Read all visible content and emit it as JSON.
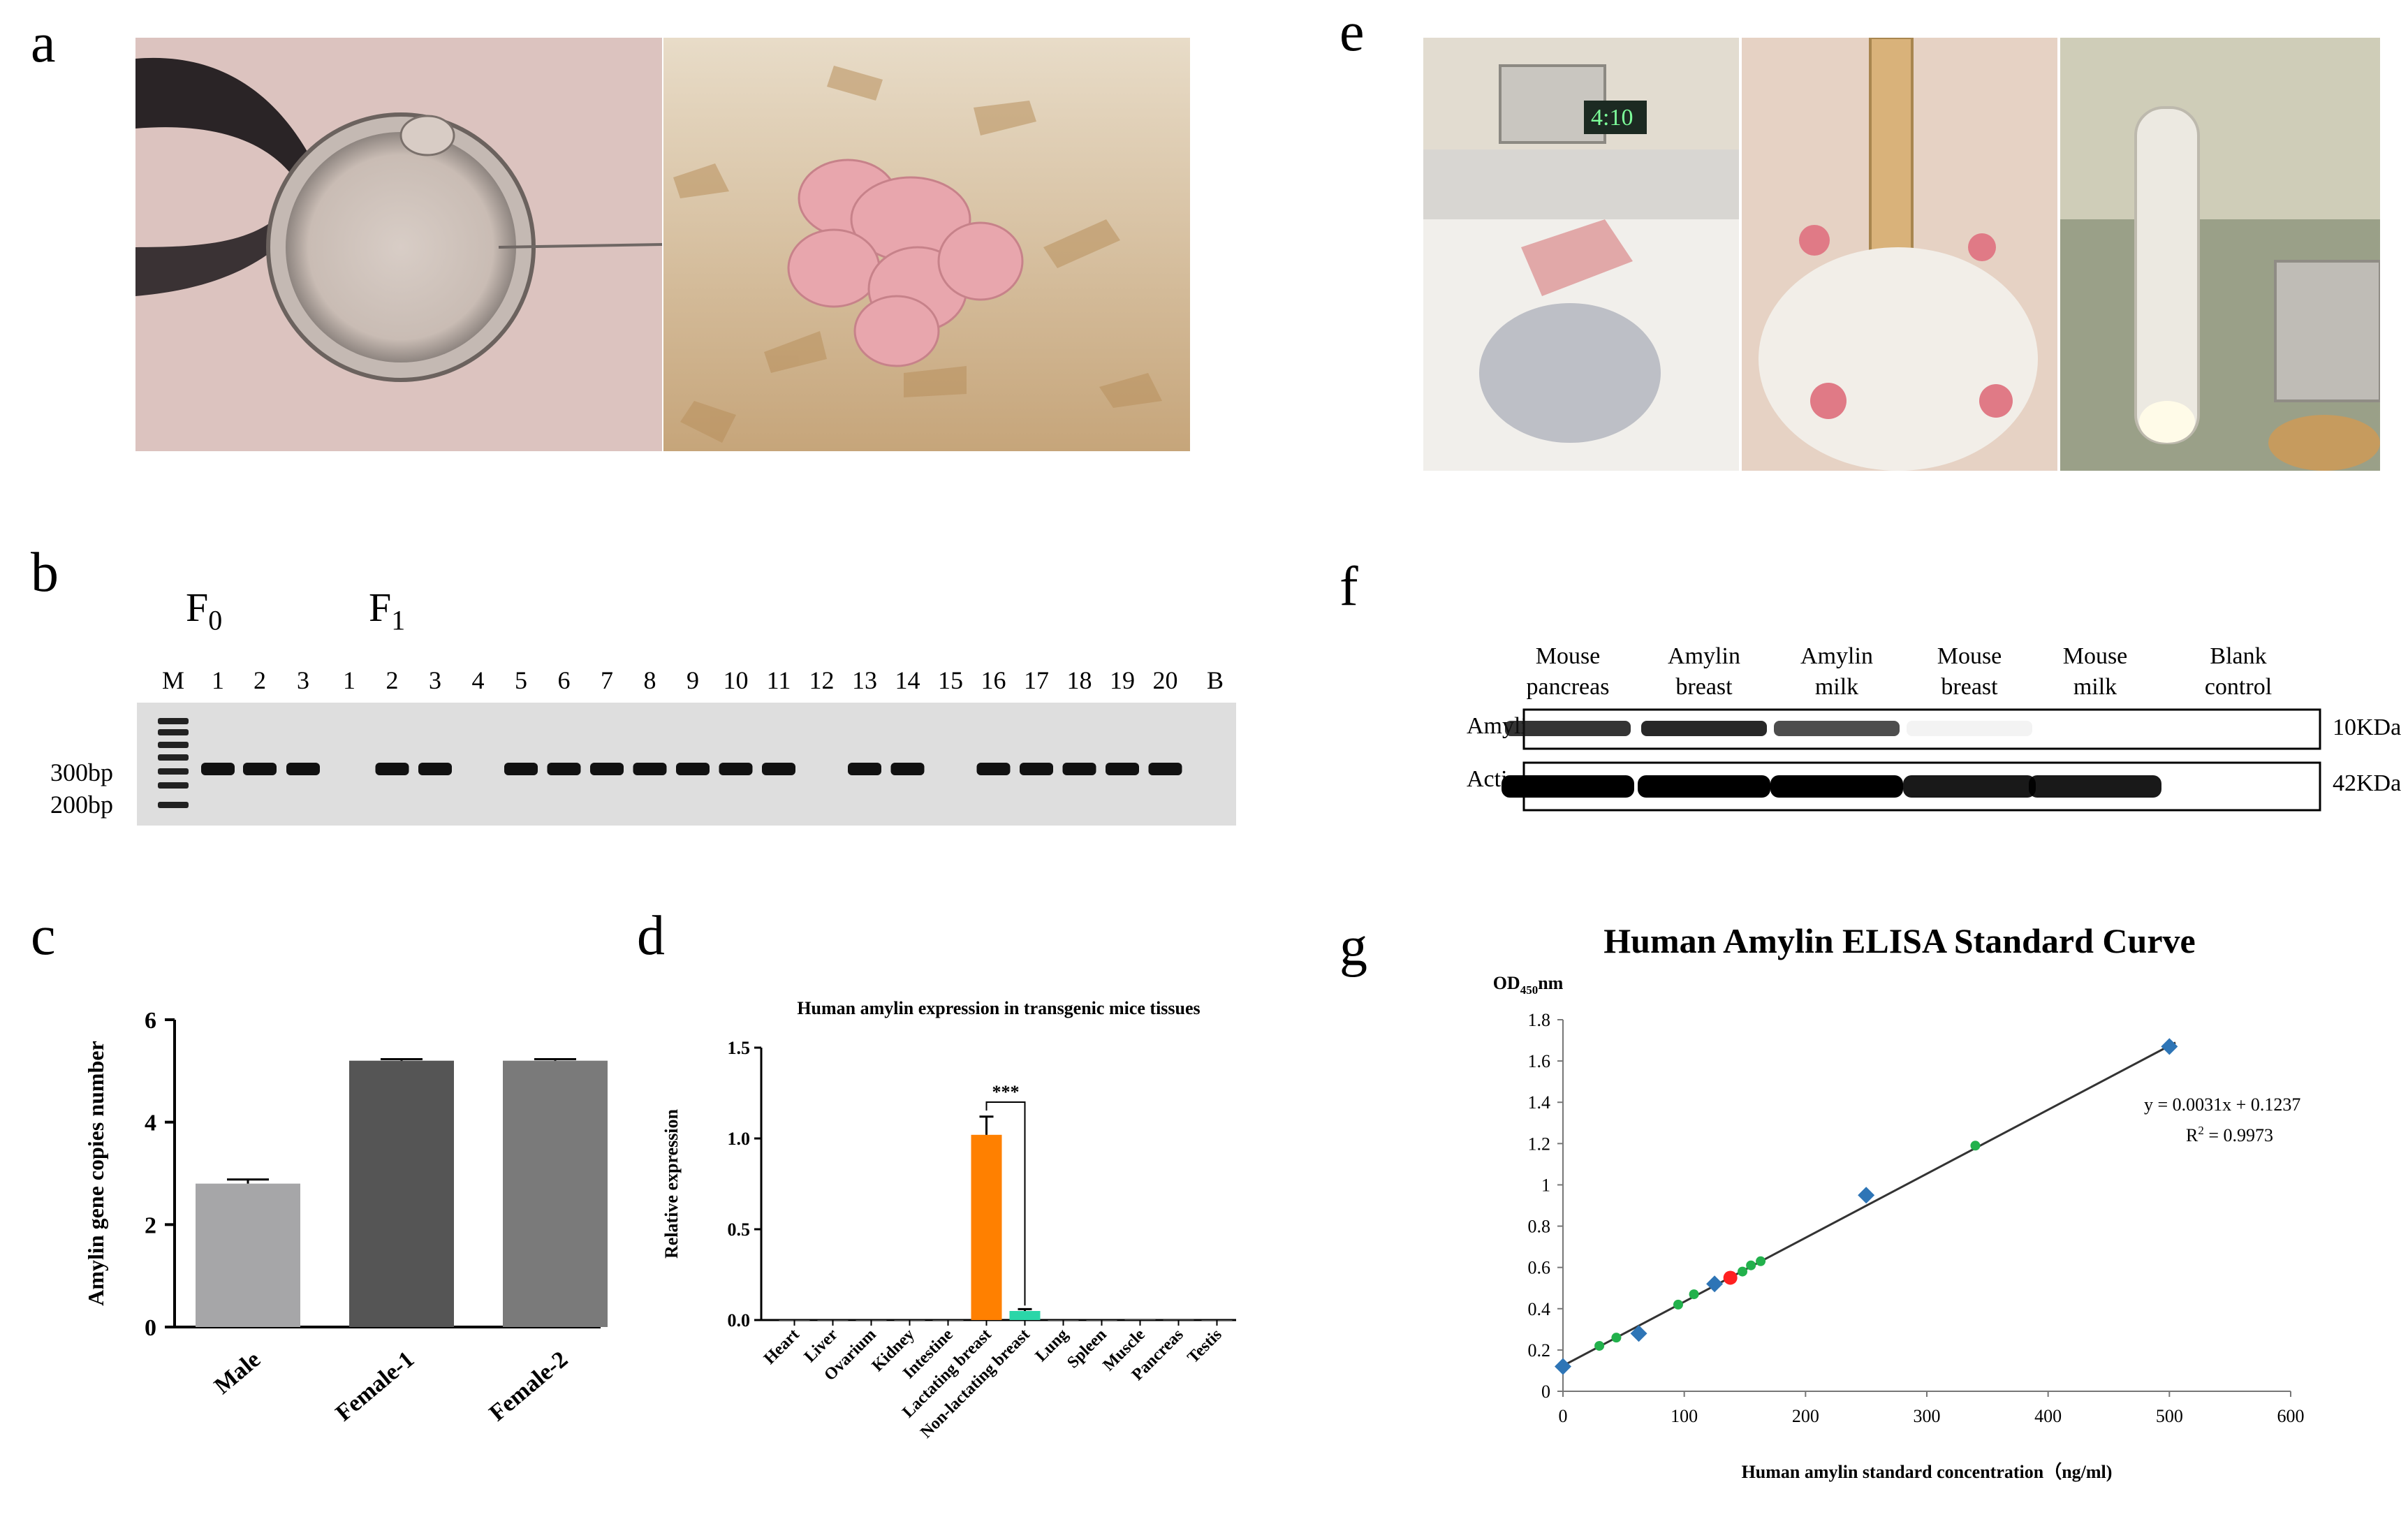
{
  "panels": {
    "a": {
      "letter": "a",
      "photos": [
        "microinjection-oocyte",
        "transgenic-pups"
      ]
    },
    "b": {
      "letter": "b",
      "f0_label": "F",
      "f0_sub": "0",
      "f1_label": "F",
      "f1_sub": "1",
      "marker": "M",
      "lanes_f0": [
        "1",
        "2",
        "3"
      ],
      "lanes_f1": [
        "1",
        "2",
        "3",
        "4",
        "5",
        "6",
        "7",
        "8",
        "9",
        "10",
        "11",
        "12",
        "13",
        "14",
        "15",
        "16",
        "17",
        "18",
        "19",
        "20"
      ],
      "blank": "B",
      "size_labels": [
        "300bp",
        "200bp"
      ],
      "positive_f0": [
        true,
        true,
        true
      ],
      "positive_f1": [
        false,
        true,
        true,
        false,
        true,
        true,
        true,
        true,
        true,
        true,
        true,
        false,
        true,
        true,
        false,
        true,
        true,
        true,
        true,
        true
      ]
    },
    "c": {
      "letter": "c"
    },
    "d": {
      "letter": "d"
    },
    "e": {
      "letter": "e",
      "photos": [
        "milking-setup",
        "mouse-abdomen",
        "milk-tube"
      ]
    },
    "f": {
      "letter": "f",
      "columns": [
        [
          "Mouse",
          "pancreas"
        ],
        [
          "Amylin",
          "breast"
        ],
        [
          "Amylin",
          "milk"
        ],
        [
          "Mouse",
          "breast"
        ],
        [
          "Mouse",
          "milk"
        ],
        [
          "Blank",
          "control"
        ]
      ],
      "rows": [
        "Amylin",
        "Actin"
      ],
      "sizes": [
        "10KDa",
        "42KDa"
      ],
      "amylin_intensity": [
        0.85,
        0.9,
        0.75,
        0.05,
        0.0,
        0.0
      ],
      "actin_intensity": [
        1.0,
        1.0,
        1.0,
        0.9,
        0.9,
        0.0
      ]
    },
    "g": {
      "letter": "g"
    }
  },
  "colors": {
    "gel_bg": "#dedede",
    "band": "#111111",
    "orange": "#ff8000",
    "teal": "#2ad6a8",
    "blue": "#2e75b6",
    "green": "#22b14c",
    "red": "#ff2020"
  },
  "chart_data": [
    {
      "id": "c",
      "type": "bar",
      "categories": [
        "Male",
        "Female-1",
        "Female-2"
      ],
      "values": [
        2.8,
        5.2,
        5.2
      ],
      "errors": [
        0.08,
        0.03,
        0.03
      ],
      "ylabel": "Amylin gene copies number",
      "ylim": [
        0,
        6
      ],
      "yticks": [
        "0",
        "2",
        "4",
        "6"
      ],
      "colors": [
        "#a6a6a8",
        "#555555",
        "#7a7a7a"
      ]
    },
    {
      "id": "d",
      "type": "bar",
      "title": "Human amylin expression in transgenic mice tissues",
      "categories": [
        "Heart",
        "Liver",
        "Ovarium",
        "Kidney",
        "Intestine",
        "Lactating breast",
        "Non-lactating breast",
        "Lung",
        "Spleen",
        "Muscle",
        "Pancreas",
        "Testis"
      ],
      "values": [
        0,
        0,
        0,
        0,
        0,
        1.02,
        0.05,
        0,
        0,
        0.003,
        0.002,
        0
      ],
      "errors": [
        0,
        0,
        0,
        0,
        0,
        0.1,
        0.01,
        0,
        0,
        0,
        0,
        0
      ],
      "ylabel": "Relative expression",
      "ylim": [
        0,
        1.5
      ],
      "yticks": [
        "0.0",
        "0.5",
        "1.0",
        "1.5"
      ],
      "significance": "***"
    },
    {
      "id": "g",
      "type": "scatter",
      "title": "Human Amylin ELISA Standard Curve",
      "ylabel_main": "OD",
      "ylabel_sub": "450",
      "ylabel_unit": "nm",
      "xlabel": "Human amylin standard concentration（ng/ml)",
      "xlim": [
        0,
        600
      ],
      "ylim": [
        0,
        1.8
      ],
      "xticks": [
        "0",
        "100",
        "200",
        "300",
        "400",
        "500",
        "600"
      ],
      "yticks": [
        "0",
        "0.2",
        "0.4",
        "0.6",
        "0.8",
        "1",
        "1.2",
        "1.4",
        "1.6",
        "1.8"
      ],
      "standards": {
        "x": [
          0,
          62.5,
          125,
          250,
          500
        ],
        "y": [
          0.12,
          0.28,
          0.52,
          0.95,
          1.67
        ]
      },
      "samples_green": {
        "x": [
          30,
          44,
          95,
          108,
          148,
          155,
          163,
          340
        ],
        "y": [
          0.22,
          0.26,
          0.42,
          0.47,
          0.58,
          0.61,
          0.63,
          1.19
        ]
      },
      "sample_red": {
        "x": [
          138
        ],
        "y": [
          0.55
        ]
      },
      "fit": {
        "slope": 0.0031,
        "intercept": 0.1237,
        "equation": "y = 0.0031x + 0.1237",
        "r2_label": "R",
        "r2_sup": "2",
        "r2_value": " = 0.9973"
      }
    }
  ]
}
